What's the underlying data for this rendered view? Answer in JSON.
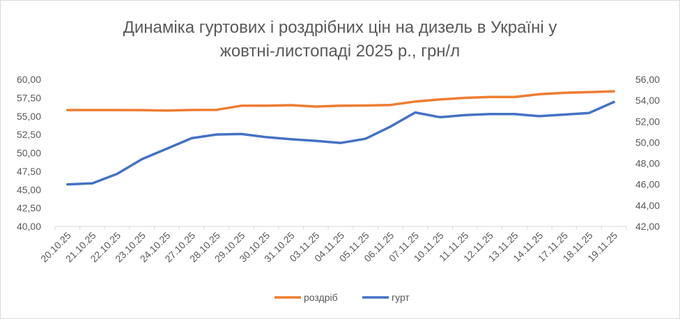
{
  "chart_data": {
    "type": "line",
    "title_lines": [
      "Динаміка гуртових і роздрібних цін на дизель в Україні у",
      "жовтні-листопаді 2025 р., грн/л"
    ],
    "categories": [
      "20.10.25",
      "21.10.25",
      "22.10.25",
      "23.10.25",
      "24.10.25",
      "27.10.25",
      "28.10.25",
      "29.10.25",
      "30.10.25",
      "31.10.25",
      "03.11.25",
      "04.11.25",
      "05.11.25",
      "06.11.25",
      "07.11.25",
      "10.11.25",
      "11.11.25",
      "12.11.25",
      "13.11.25",
      "14.11.25",
      "17.11.25",
      "18.11.25",
      "19.11.25"
    ],
    "y_left": {
      "min": 40,
      "max": 60,
      "step": 2.5,
      "ticks": [
        "40,00",
        "42,50",
        "45,00",
        "47,50",
        "50,00",
        "52,50",
        "55,00",
        "57,50",
        "60,00"
      ]
    },
    "y_right": {
      "min": 42,
      "max": 56,
      "step": 2,
      "ticks": [
        "42,00",
        "44,00",
        "46,00",
        "48,00",
        "50,00",
        "52,00",
        "54,00",
        "56,00"
      ]
    },
    "series": [
      {
        "name": "роздріб",
        "axis": "left",
        "color": "#ED7D31",
        "values": [
          55.83,
          55.83,
          55.83,
          55.82,
          55.75,
          55.84,
          55.86,
          56.42,
          56.42,
          56.49,
          56.3,
          56.43,
          56.45,
          56.52,
          56.99,
          57.27,
          57.49,
          57.6,
          57.6,
          57.98,
          58.17,
          58.27,
          58.38
        ]
      },
      {
        "name": "гурт",
        "axis": "right",
        "color": "#4472C4",
        "values": [
          46.0,
          46.1,
          47.0,
          48.4,
          49.4,
          50.4,
          50.75,
          50.8,
          50.5,
          50.3,
          50.15,
          49.95,
          50.35,
          51.5,
          52.85,
          52.4,
          52.6,
          52.7,
          52.7,
          52.5,
          52.65,
          52.8,
          53.85
        ]
      }
    ],
    "grid": false,
    "legend_position": "bottom"
  }
}
